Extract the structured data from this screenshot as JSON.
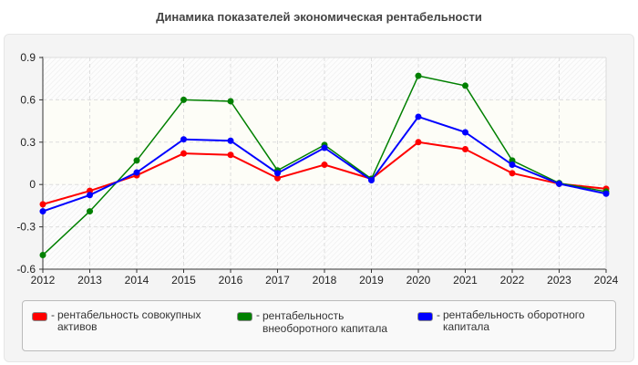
{
  "chart_data": {
    "type": "line",
    "title": "Динамика показателей экономическая рентабельности",
    "categories": [
      "2012",
      "2013",
      "2014",
      "2015",
      "2016",
      "2017",
      "2018",
      "2019",
      "2020",
      "2021",
      "2022",
      "2023",
      "2024"
    ],
    "ylim": [
      -0.6,
      0.9
    ],
    "yticks": [
      "0.9",
      "0.6",
      "0.3",
      "0",
      "-0.3",
      "-0.6"
    ],
    "ytick_values": [
      0.9,
      0.6,
      0.3,
      0,
      -0.3,
      -0.6
    ],
    "grid": true,
    "legend_position": "bottom",
    "series": [
      {
        "name": "рентабельность совокупных активов",
        "color": "#ff0000",
        "values": [
          -0.14,
          -0.045,
          0.065,
          0.22,
          0.21,
          0.045,
          0.14,
          0.04,
          0.3,
          0.25,
          0.08,
          0.005,
          -0.03
        ]
      },
      {
        "name": "рентабельность внеоборотного капитала",
        "color": "#008000",
        "values": [
          -0.5,
          -0.19,
          0.17,
          0.6,
          0.59,
          0.1,
          0.28,
          0.04,
          0.77,
          0.7,
          0.17,
          0.01,
          -0.05
        ]
      },
      {
        "name": "рентабельность оборотного капитала",
        "color": "#0000ff",
        "values": [
          -0.19,
          -0.075,
          0.085,
          0.32,
          0.31,
          0.08,
          0.26,
          0.03,
          0.48,
          0.37,
          0.14,
          0.005,
          -0.065
        ]
      }
    ]
  }
}
